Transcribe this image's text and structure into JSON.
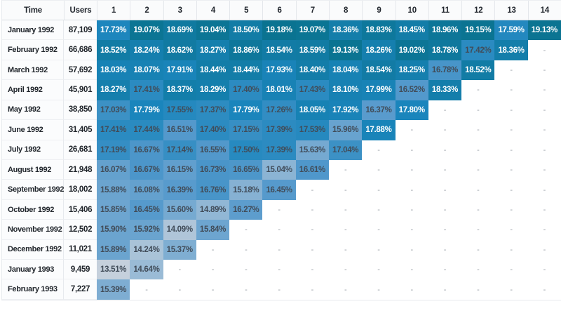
{
  "chart_data": {
    "type": "heatmap",
    "columns": [
      "Time",
      "Users",
      "1",
      "2",
      "3",
      "4",
      "5",
      "6",
      "7",
      "8",
      "9",
      "10",
      "11",
      "12",
      "13",
      "14"
    ],
    "value_suffix": "%",
    "empty_marker": "-",
    "rows": [
      {
        "time": "January 1992",
        "users": "87,109",
        "values": [
          17.73,
          19.07,
          18.69,
          19.04,
          18.5,
          19.18,
          19.07,
          18.36,
          18.83,
          18.45,
          18.96,
          19.15,
          17.59,
          19.13
        ]
      },
      {
        "time": "February 1992",
        "users": "66,686",
        "values": [
          18.52,
          18.24,
          18.62,
          18.27,
          18.86,
          18.54,
          18.59,
          19.13,
          18.26,
          19.02,
          18.78,
          17.42,
          18.36,
          null
        ]
      },
      {
        "time": "March 1992",
        "users": "57,692",
        "values": [
          18.03,
          18.07,
          17.91,
          18.44,
          18.44,
          17.93,
          18.4,
          18.04,
          18.54,
          18.25,
          16.78,
          18.52,
          null,
          null
        ]
      },
      {
        "time": "April 1992",
        "users": "45,901",
        "values": [
          18.27,
          17.41,
          18.37,
          18.29,
          17.4,
          18.01,
          17.43,
          18.1,
          17.99,
          16.52,
          18.33,
          null,
          null,
          null
        ]
      },
      {
        "time": "May 1992",
        "users": "38,850",
        "values": [
          17.03,
          17.79,
          17.55,
          17.37,
          17.79,
          17.26,
          18.05,
          17.92,
          16.37,
          17.8,
          null,
          null,
          null,
          null
        ]
      },
      {
        "time": "June 1992",
        "users": "31,405",
        "values": [
          17.41,
          17.44,
          16.51,
          17.4,
          17.15,
          17.39,
          17.53,
          15.96,
          17.88,
          null,
          null,
          null,
          null,
          null
        ]
      },
      {
        "time": "July 1992",
        "users": "26,681",
        "values": [
          17.19,
          16.67,
          17.14,
          16.55,
          17.5,
          17.39,
          15.63,
          17.04,
          null,
          null,
          null,
          null,
          null,
          null
        ]
      },
      {
        "time": "August 1992",
        "users": "21,948",
        "values": [
          16.07,
          16.67,
          16.15,
          16.73,
          16.65,
          15.04,
          16.61,
          null,
          null,
          null,
          null,
          null,
          null,
          null
        ]
      },
      {
        "time": "September 1992",
        "users": "18,002",
        "values": [
          15.88,
          16.08,
          16.39,
          16.76,
          15.18,
          16.45,
          null,
          null,
          null,
          null,
          null,
          null,
          null,
          null
        ]
      },
      {
        "time": "October 1992",
        "users": "15,406",
        "values": [
          15.85,
          16.45,
          15.6,
          14.89,
          16.27,
          null,
          null,
          null,
          null,
          null,
          null,
          null,
          null,
          null
        ]
      },
      {
        "time": "November 1992",
        "users": "12,502",
        "values": [
          15.9,
          15.92,
          14.09,
          15.84,
          null,
          null,
          null,
          null,
          null,
          null,
          null,
          null,
          null,
          null
        ]
      },
      {
        "time": "December 1992",
        "users": "11,021",
        "values": [
          15.89,
          14.24,
          15.37,
          null,
          null,
          null,
          null,
          null,
          null,
          null,
          null,
          null,
          null,
          null
        ]
      },
      {
        "time": "January 1993",
        "users": "9,459",
        "values": [
          13.51,
          14.64,
          null,
          null,
          null,
          null,
          null,
          null,
          null,
          null,
          null,
          null,
          null,
          null
        ]
      },
      {
        "time": "February 1993",
        "users": "7,227",
        "values": [
          15.39,
          null,
          null,
          null,
          null,
          null,
          null,
          null,
          null,
          null,
          null,
          null,
          null,
          null
        ]
      }
    ],
    "color_scale": {
      "stops": [
        [
          13.4,
          "#c9d2dd"
        ],
        [
          16.5,
          "#5499cc"
        ],
        [
          17.8,
          "#1a85bc"
        ],
        [
          19.2,
          "#0a7390"
        ]
      ],
      "white_text_threshold": 17.58,
      "dark_text_color": "#414c59",
      "white_text_color": "#ffffff"
    }
  }
}
